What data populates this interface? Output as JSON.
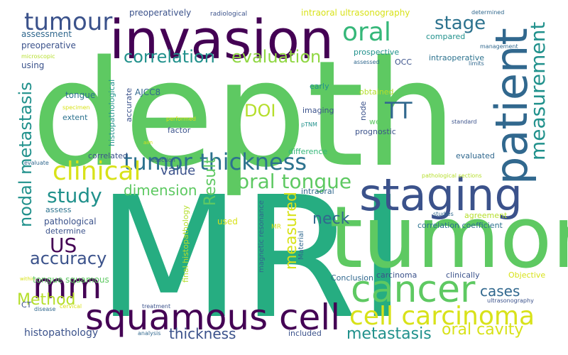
{
  "colors": {
    "purple": "#440154",
    "indigo": "#3b528b",
    "blue": "#31688e",
    "teal": "#21918c",
    "green": "#35b779",
    "green_light": "#5ec962",
    "lime": "#90d743",
    "yellow": "#d8e219",
    "yellow_bright": "#fde725"
  },
  "words": [
    {
      "text": "depth",
      "color": "#5ec962"
    },
    {
      "text": "MRI",
      "color": "#26ad81"
    },
    {
      "text": "tumor",
      "color": "#5ec962"
    },
    {
      "text": "invasion",
      "color": "#440154"
    },
    {
      "text": "staging",
      "color": "#3b528b"
    },
    {
      "text": "patient",
      "color": "#31688e"
    },
    {
      "text": "squamous cell",
      "color": "#440154"
    },
    {
      "text": "cancer",
      "color": "#5ec962"
    },
    {
      "text": "cell carcinoma",
      "color": "#d8e219"
    },
    {
      "text": "mm",
      "color": "#440154"
    },
    {
      "text": "tumour",
      "color": "#3b528b"
    },
    {
      "text": "tumor thickness",
      "color": "#2c728e"
    },
    {
      "text": "clinical",
      "color": "#d8e219"
    },
    {
      "text": "oral",
      "color": "#35b779"
    },
    {
      "text": "measurement",
      "color": "#21918c"
    },
    {
      "text": "oral tongue",
      "color": "#5ec962"
    },
    {
      "text": "TT",
      "color": "#31688e"
    },
    {
      "text": "stage",
      "color": "#2c728e"
    },
    {
      "text": "study",
      "color": "#21918c"
    },
    {
      "text": "US",
      "color": "#440154"
    },
    {
      "text": "accuracy",
      "color": "#3b528b"
    },
    {
      "text": "nodal metastasis",
      "color": "#21918c"
    },
    {
      "text": "correlation",
      "color": "#21918c"
    },
    {
      "text": "evaluation",
      "color": "#90d743"
    },
    {
      "text": "DOI",
      "color": "#b5de2b"
    },
    {
      "text": "Result",
      "color": "#5ec962"
    },
    {
      "text": "measured",
      "color": "#d8e219"
    },
    {
      "text": "neck",
      "color": "#31688e"
    },
    {
      "text": "Method",
      "color": "#b5de2b"
    },
    {
      "text": "metastasis",
      "color": "#21918c"
    },
    {
      "text": "oral cavity",
      "color": "#d8e219"
    },
    {
      "text": "thickness",
      "color": "#3b528b"
    },
    {
      "text": "dimension",
      "color": "#5ec962"
    },
    {
      "text": "value",
      "color": "#3b528b"
    },
    {
      "text": "cases",
      "color": "#31688e"
    },
    {
      "text": "histopathology",
      "color": "#3b528b"
    },
    {
      "text": "intraoral ultrasonography",
      "color": "#d8e219"
    },
    {
      "text": "preoperatively",
      "color": "#3b528b"
    },
    {
      "text": "radiological",
      "color": "#3b528b"
    },
    {
      "text": "determined",
      "color": "#31688e"
    },
    {
      "text": "assessment",
      "color": "#31688e"
    },
    {
      "text": "preoperative",
      "color": "#3b528b"
    },
    {
      "text": "compared",
      "color": "#21918c"
    },
    {
      "text": "management",
      "color": "#31688e"
    },
    {
      "text": "microscopic",
      "color": "#b5de2b"
    },
    {
      "text": "prospective",
      "color": "#21918c"
    },
    {
      "text": "intraoperative",
      "color": "#2c728e"
    },
    {
      "text": "using",
      "color": "#3b528b"
    },
    {
      "text": "assessed",
      "color": "#31688e"
    },
    {
      "text": "OCC",
      "color": "#3b528b"
    },
    {
      "text": "limits",
      "color": "#31688e"
    },
    {
      "text": "early",
      "color": "#21918c"
    },
    {
      "text": "AJCC8",
      "color": "#31688e"
    },
    {
      "text": "tongue",
      "color": "#2c728e"
    },
    {
      "text": "histopathological",
      "color": "#21918c"
    },
    {
      "text": "accurate",
      "color": "#3b528b"
    },
    {
      "text": "obtained",
      "color": "#b5de2b"
    },
    {
      "text": "specimen",
      "color": "#d8e219"
    },
    {
      "text": "extent",
      "color": "#2c728e"
    },
    {
      "text": "performed",
      "color": "#d8e219"
    },
    {
      "text": "well",
      "color": "#5ec962"
    },
    {
      "text": "imaging",
      "color": "#3b528b"
    },
    {
      "text": "node",
      "color": "#3b528b"
    },
    {
      "text": "pTNM",
      "color": "#21918c"
    },
    {
      "text": "prognostic",
      "color": "#3b528b"
    },
    {
      "text": "standard",
      "color": "#3b528b"
    },
    {
      "text": "factor",
      "color": "#3b528b"
    },
    {
      "text": "aim",
      "color": "#d8e219"
    },
    {
      "text": "correlated",
      "color": "#3b528b"
    },
    {
      "text": "evaluated",
      "color": "#31688e"
    },
    {
      "text": "evaluate",
      "color": "#31688e"
    },
    {
      "text": "resection",
      "color": "#3b528b"
    },
    {
      "text": "difference",
      "color": "#35b779"
    },
    {
      "text": "pathological sections",
      "color": "#b5de2b"
    },
    {
      "text": "intraoral",
      "color": "#31688e"
    },
    {
      "text": "assess",
      "color": "#2c728e"
    },
    {
      "text": "determine",
      "color": "#3b528b"
    },
    {
      "text": "pathological",
      "color": "#3b528b"
    },
    {
      "text": "final histopathology",
      "color": "#b5de2b"
    },
    {
      "text": "magnetic resonance",
      "color": "#31688e"
    },
    {
      "text": "MR",
      "color": "#d8e219"
    },
    {
      "text": "used",
      "color": "#d8e219"
    },
    {
      "text": "agreement",
      "color": "#b5de2b"
    },
    {
      "text": "studies",
      "color": "#31688e"
    },
    {
      "text": "correlation coefficient",
      "color": "#2c728e"
    },
    {
      "text": "within",
      "color": "#d8e219"
    },
    {
      "text": "tongue squamous",
      "color": "#5ec962"
    },
    {
      "text": "Material",
      "color": "#31688e"
    },
    {
      "text": "Conclusion",
      "color": "#31688e"
    },
    {
      "text": "carcinoma",
      "color": "#3b528b"
    },
    {
      "text": "clinically",
      "color": "#3b528b"
    },
    {
      "text": "Objective",
      "color": "#d8e219"
    },
    {
      "text": "treatment",
      "color": "#3b528b"
    },
    {
      "text": "CT",
      "color": "#3b528b"
    },
    {
      "text": "disease",
      "color": "#31688e"
    },
    {
      "text": "cervical",
      "color": "#d8e219"
    },
    {
      "text": "ultrasonography",
      "color": "#3b528b"
    },
    {
      "text": "analysis",
      "color": "#31688e"
    },
    {
      "text": "included",
      "color": "#3b528b"
    }
  ]
}
